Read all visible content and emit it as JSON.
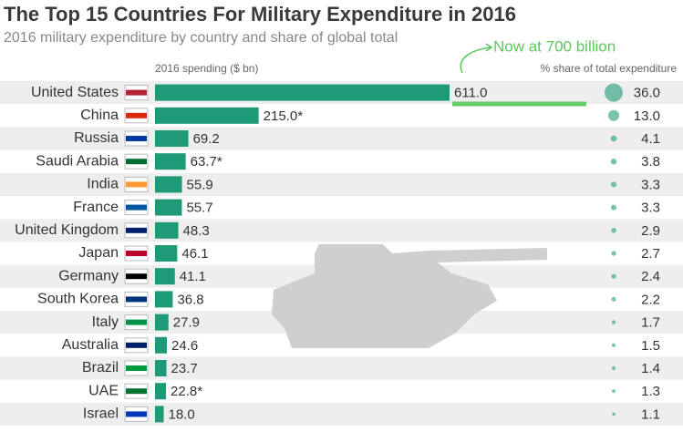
{
  "chart_data": {
    "type": "bar",
    "title": "The Top 15 Countries For Military Expenditure in 2016",
    "subtitle": "2016 military expenditure by country and share of global total",
    "annotation": "Now at 700 billion",
    "categories": [
      "United States",
      "China",
      "Russia",
      "Saudi Arabia",
      "India",
      "France",
      "United Kingdom",
      "Japan",
      "Germany",
      "South Korea",
      "Italy",
      "Australia",
      "Brazil",
      "UAE",
      "Israel"
    ],
    "series": [
      {
        "name": "2016 spending ($ bn)",
        "color": "#1e9a78",
        "values": [
          611,
          215,
          69.2,
          63.7,
          55.9,
          55.7,
          48.3,
          46.1,
          41.1,
          36.8,
          27.9,
          24.6,
          23.7,
          22.8,
          18
        ],
        "value_labels": [
          "611.0",
          "215.0*",
          "69.2",
          "63.7*",
          "55.9",
          "55.7",
          "48.3",
          "46.1",
          "41.1",
          "36.8",
          "27.9",
          "24.6",
          "23.7",
          "22.8*",
          "18.0"
        ]
      },
      {
        "name": "% share of total expenditure",
        "color": "#1e9a78",
        "values": [
          36,
          13,
          4.1,
          3.8,
          3.3,
          3.3,
          2.9,
          2.7,
          2.4,
          2.2,
          1.7,
          1.5,
          1.4,
          1.3,
          1.1
        ],
        "value_labels": [
          "36.0",
          "13.0",
          "4.1",
          "3.8",
          "3.3",
          "3.3",
          "2.9",
          "2.7",
          "2.4",
          "2.2",
          "1.7",
          "1.5",
          "1.4",
          "1.3",
          "1.1"
        ]
      }
    ]
  }
}
